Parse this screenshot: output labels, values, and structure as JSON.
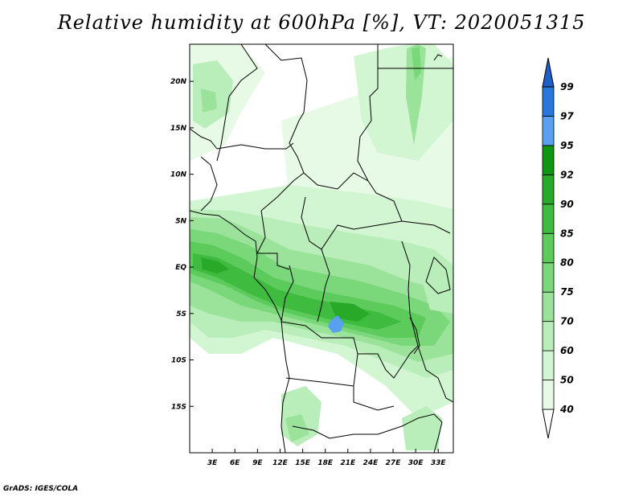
{
  "title": "Relative humidity at 600hPa [%], VT: 2020051315",
  "footer": "GrADS: IGES/COLA",
  "map": {
    "lon_range": [
      0,
      35
    ],
    "lat_range": [
      -20,
      24
    ],
    "lon_ticks": [
      "3E",
      "6E",
      "9E",
      "12E",
      "15E",
      "18E",
      "21E",
      "24E",
      "27E",
      "30E",
      "33E"
    ],
    "lat_ticks": [
      "20N",
      "15N",
      "10N",
      "5N",
      "EQ",
      "5S",
      "10S",
      "15S"
    ]
  },
  "colorbar": {
    "levels": [
      "40",
      "50",
      "60",
      "70",
      "75",
      "80",
      "85",
      "90",
      "92",
      "95",
      "97",
      "99"
    ],
    "colors": [
      "#ffffff",
      "#e6fae6",
      "#d2f5d2",
      "#b9edb9",
      "#9be39b",
      "#7ad77a",
      "#5ccb5c",
      "#3fbb3f",
      "#28aa28",
      "#129612",
      "#5aa0f0",
      "#2878dc",
      "#1e5fc8"
    ]
  }
}
